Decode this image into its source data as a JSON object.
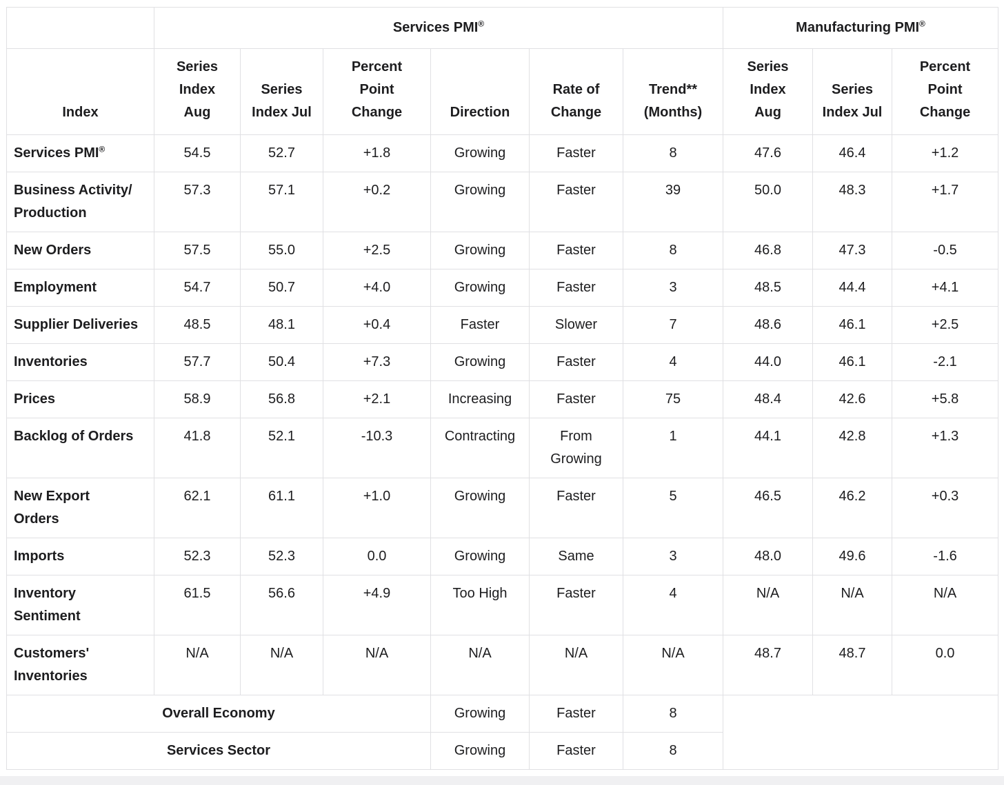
{
  "table": {
    "group_headers": {
      "services": {
        "text": "Services PMI",
        "sup": "®"
      },
      "manufacturing": {
        "text": "Manufacturing PMI",
        "sup": "®"
      }
    },
    "column_headers": [
      "Index",
      "Series\nIndex\nAug",
      "Series\nIndex Jul",
      "Percent\nPoint\nChange",
      "Direction",
      "Rate of\nChange",
      "Trend**\n(Months)",
      "Series\nIndex\nAug",
      "Series\nIndex Jul",
      "Percent\nPoint\nChange"
    ],
    "rows": [
      {
        "label": "Services PMI",
        "sup": "®",
        "cells": [
          "54.5",
          "52.7",
          "+1.8",
          "Growing",
          "Faster",
          "8",
          "47.6",
          "46.4",
          "+1.2"
        ]
      },
      {
        "label": "Business Activity/\nProduction",
        "cells": [
          "57.3",
          "57.1",
          "+0.2",
          "Growing",
          "Faster",
          "39",
          "50.0",
          "48.3",
          "+1.7"
        ]
      },
      {
        "label": "New Orders",
        "cells": [
          "57.5",
          "55.0",
          "+2.5",
          "Growing",
          "Faster",
          "8",
          "46.8",
          "47.3",
          "-0.5"
        ]
      },
      {
        "label": "Employment",
        "cells": [
          "54.7",
          "50.7",
          "+4.0",
          "Growing",
          "Faster",
          "3",
          "48.5",
          "44.4",
          "+4.1"
        ]
      },
      {
        "label": "Supplier Deliveries",
        "cells": [
          "48.5",
          "48.1",
          "+0.4",
          "Faster",
          "Slower",
          "7",
          "48.6",
          "46.1",
          "+2.5"
        ]
      },
      {
        "label": "Inventories",
        "cells": [
          "57.7",
          "50.4",
          "+7.3",
          "Growing",
          "Faster",
          "4",
          "44.0",
          "46.1",
          "-2.1"
        ]
      },
      {
        "label": "Prices",
        "cells": [
          "58.9",
          "56.8",
          "+2.1",
          "Increasing",
          "Faster",
          "75",
          "48.4",
          "42.6",
          "+5.8"
        ]
      },
      {
        "label": "Backlog of Orders",
        "cells": [
          "41.8",
          "52.1",
          "-10.3",
          "Contracting",
          "From\nGrowing",
          "1",
          "44.1",
          "42.8",
          "+1.3"
        ]
      },
      {
        "label": "New Export\nOrders",
        "cells": [
          "62.1",
          "61.1",
          "+1.0",
          "Growing",
          "Faster",
          "5",
          "46.5",
          "46.2",
          "+0.3"
        ]
      },
      {
        "label": "Imports",
        "cells": [
          "52.3",
          "52.3",
          "0.0",
          "Growing",
          "Same",
          "3",
          "48.0",
          "49.6",
          "-1.6"
        ]
      },
      {
        "label": "Inventory\nSentiment",
        "cells": [
          "61.5",
          "56.6",
          "+4.9",
          "Too High",
          "Faster",
          "4",
          "N/A",
          "N/A",
          "N/A"
        ]
      },
      {
        "label": "Customers'\nInventories",
        "cells": [
          "N/A",
          "N/A",
          "N/A",
          "N/A",
          "N/A",
          "N/A",
          "48.7",
          "48.7",
          "0.0"
        ]
      }
    ],
    "summary_rows": [
      {
        "label": "Overall Economy",
        "cells": [
          "Growing",
          "Faster",
          "8"
        ]
      },
      {
        "label": "Services Sector",
        "cells": [
          "Growing",
          "Faster",
          "8"
        ]
      }
    ]
  }
}
